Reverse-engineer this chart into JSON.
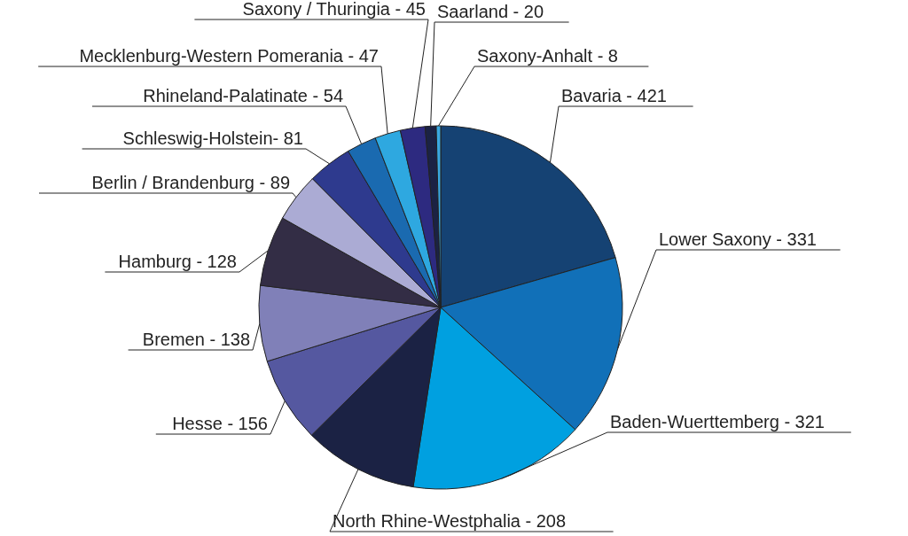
{
  "chart_data": {
    "type": "pie",
    "categories": [
      "Bavaria - 421",
      "Lower Saxony - 331",
      "Baden-Wuerttemberg - 321",
      "North Rhine-Westphalia - 208",
      "Hesse - 156",
      "Bremen - 138",
      "Hamburg - 128",
      "Berlin / Brandenburg - 89",
      "Schleswig-Holstein- 81",
      "Rhineland-Palatinate - 54",
      "Mecklenburg-Western Pomerania - 47",
      "Saxony / Thuringia - 45",
      "Saarland - 20",
      "Saxony-Anhalt - 8"
    ],
    "values": [
      20.57,
      16.17,
      15.68,
      10.16,
      7.62,
      6.74,
      6.25,
      4.35,
      3.96,
      2.64,
      2.29,
      2.2,
      0.98,
      0.39
    ],
    "colors": [
      "#154273",
      "#1170b8",
      "#00a0e0",
      "#1b2244",
      "#5558a0",
      "#8080b8",
      "#332d45",
      "#ababd4",
      "#2e3a8e",
      "#1a6ab0",
      "#2ea8e0",
      "#2d2a80",
      "#1b2244",
      "#3aa8e0"
    ],
    "legend": false
  }
}
